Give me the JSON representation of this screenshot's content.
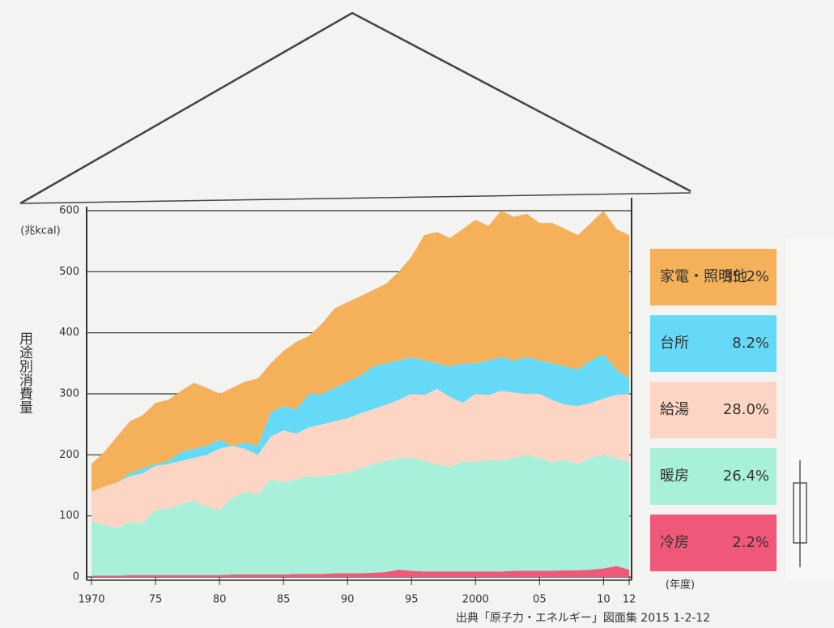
{
  "chart_data": {
    "type": "stacked-area",
    "y_axis_label": "用途別消費量",
    "y_unit": "(兆kcal)",
    "x_unit": "(年度)",
    "source": "出典「原子力・エネルギー」図面集 2015 1-2-12",
    "x": [
      1970,
      1971,
      1972,
      1973,
      1974,
      1975,
      1976,
      1977,
      1978,
      1979,
      1980,
      1981,
      1982,
      1983,
      1984,
      1985,
      1986,
      1987,
      1988,
      1989,
      1990,
      1991,
      1992,
      1993,
      1994,
      1995,
      1996,
      1997,
      1998,
      1999,
      2000,
      2001,
      2002,
      2003,
      2004,
      2005,
      2006,
      2007,
      2008,
      2009,
      2010,
      2011,
      2012
    ],
    "xlim": [
      1970,
      2012
    ],
    "xticks": [
      1970,
      {
        "value": 1975,
        "label": "75"
      },
      {
        "value": 1980,
        "label": "80"
      },
      {
        "value": 1985,
        "label": "85"
      },
      {
        "value": 1990,
        "label": "90"
      },
      {
        "value": 1995,
        "label": "95"
      },
      2000,
      {
        "value": 2005,
        "label": "05"
      },
      {
        "value": 2010,
        "label": "10"
      },
      {
        "value": 2012,
        "label": "12"
      }
    ],
    "ylim": [
      0,
      600
    ],
    "yticks": [
      0,
      100,
      200,
      300,
      400,
      500,
      600
    ],
    "grid": true,
    "series": [
      {
        "name": "冷房",
        "color": "#f0587a",
        "share": {
          "value": 2.2,
          "label": "2.2%"
        },
        "values": [
          2,
          2,
          2,
          3,
          3,
          3,
          3,
          3,
          3,
          3,
          3,
          4,
          4,
          4,
          4,
          4,
          5,
          5,
          5,
          6,
          6,
          6,
          7,
          8,
          12,
          10,
          9,
          9,
          9,
          9,
          9,
          9,
          9,
          10,
          10,
          10,
          10,
          11,
          11,
          12,
          14,
          18,
          12
        ]
      },
      {
        "name": "暖房",
        "color": "#a8f0d9",
        "share": {
          "value": 26.4,
          "label": "26.4%"
        },
        "values": [
          90,
          83,
          78,
          87,
          85,
          107,
          109,
          117,
          122,
          112,
          107,
          126,
          136,
          131,
          156,
          151,
          155,
          160,
          160,
          162,
          164,
          172,
          178,
          182,
          183,
          185,
          181,
          176,
          171,
          181,
          179,
          183,
          181,
          185,
          190,
          185,
          178,
          181,
          174,
          183,
          186,
          177,
          176
        ]
      },
      {
        "name": "給湯",
        "color": "#fdd5c5",
        "share": {
          "value": 28.0,
          "label": "28.0%"
        },
        "values": [
          48,
          63,
          75,
          75,
          82,
          72,
          73,
          70,
          70,
          85,
          100,
          85,
          70,
          65,
          70,
          85,
          75,
          80,
          85,
          87,
          90,
          90,
          90,
          92,
          95,
          105,
          108,
          123,
          115,
          95,
          112,
          106,
          115,
          107,
          100,
          105,
          102,
          90,
          95,
          90,
          92,
          103,
          112
        ]
      },
      {
        "name": "台所",
        "color": "#66d9f7",
        "share": {
          "value": 8.2,
          "label": "8.2%"
        },
        "values": [
          0,
          0,
          0,
          5,
          8,
          3,
          5,
          15,
          15,
          15,
          15,
          0,
          10,
          15,
          40,
          40,
          40,
          55,
          50,
          55,
          60,
          62,
          70,
          68,
          65,
          60,
          57,
          42,
          50,
          65,
          50,
          57,
          55,
          53,
          60,
          55,
          60,
          63,
          60,
          70,
          73,
          42,
          25
        ]
      },
      {
        "name": "家電・照明他",
        "color": "#f5b05a",
        "share": {
          "value": 35.2,
          "label": "35.2%"
        },
        "values": [
          45,
          57,
          75,
          85,
          87,
          100,
          100,
          100,
          108,
          95,
          75,
          95,
          100,
          110,
          80,
          90,
          110,
          95,
          115,
          130,
          130,
          130,
          125,
          130,
          145,
          165,
          205,
          215,
          210,
          220,
          235,
          220,
          240,
          235,
          235,
          225,
          230,
          225,
          220,
          225,
          235,
          230,
          235
        ]
      }
    ]
  }
}
